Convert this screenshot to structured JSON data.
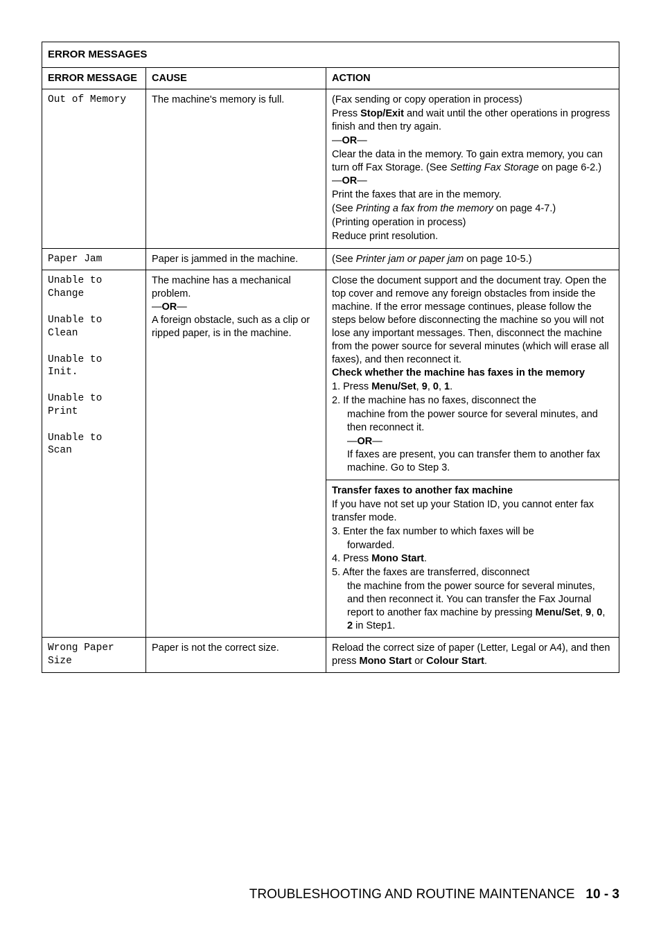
{
  "table": {
    "title": "ERROR MESSAGES",
    "headers": {
      "message": "ERROR MESSAGE",
      "cause": "CAUSE",
      "action": "ACTION"
    },
    "rows": {
      "out_of_memory": {
        "message": "Out of Memory",
        "cause": "The machine's memory is full.",
        "action": {
          "l1": "(Fax sending or copy operation in process)",
          "l2a": "Press ",
          "l2b": "Stop/Exit",
          "l2c": " and wait until the other operations in progress finish and then try again.",
          "or1a": "—",
          "or1b": "OR",
          "or1c": "—",
          "l3a": "Clear the data in the memory. To gain extra memory, you can turn off Fax Storage. (See ",
          "l3b": "Setting Fax Storage",
          "l3c": " on page 6-2.)",
          "or2a": "—",
          "or2b": "OR",
          "or2c": "—",
          "l4": "Print the faxes that are in the memory.",
          "l5a": "(See ",
          "l5b": "Printing a fax from the memory",
          "l5c": " on page 4-7.)",
          "l6": "(Printing operation in process)",
          "l7": "Reduce print resolution."
        }
      },
      "paper_jam": {
        "message": "Paper Jam",
        "cause": "Paper is jammed in the machine.",
        "action_a": "(See ",
        "action_b": "Printer jam or paper jam",
        "action_c": " on page 10-5.)"
      },
      "unable": {
        "message": "Unable to\nChange\n\nUnable to\nClean\n\nUnable to\nInit.\n\nUnable to\nPrint\n\nUnable to\nScan",
        "cause": {
          "l1": "The machine has a mechanical problem.",
          "or_a": "—",
          "or_b": "OR",
          "or_c": "—",
          "l2": "A foreign obstacle, such as a clip or ripped paper, is in the machine."
        },
        "action1": {
          "para1": "Close the document support and the document tray. Open the top cover and remove any foreign obstacles from inside the machine. If the error message continues, please follow the steps below before disconnecting the machine so you will not lose any important messages. Then, disconnect the machine from the power source for several minutes (which will erase all faxes), and then reconnect it.",
          "check": "Check whether the machine has faxes in the memory",
          "s1a": "1. Press ",
          "s1b": "Menu/Set",
          "s1c": ", ",
          "s1d": "9",
          "s1e": ", ",
          "s1f": "0",
          "s1g": ", ",
          "s1h": "1",
          "s1i": ".",
          "s2": "2. If the machine has no faxes, disconnect the machine from the power source for several minutes, and then reconnect it.",
          "or_a": "—",
          "or_b": "OR",
          "or_c": "—",
          "s2b": "If faxes are present, you can transfer them to another fax machine. Go to Step 3."
        },
        "action2": {
          "head": "Transfer faxes to another fax machine",
          "l1": "If you have not set up your Station ID, you cannot enter fax transfer mode.",
          "s3": "3. Enter the fax number to which faxes will be forwarded.",
          "s4a": "4. Press ",
          "s4b": "Mono Start",
          "s4c": ".",
          "s5a": "5. After the faxes are transferred, disconnect the machine from the power source for several minutes, and then reconnect it. You can transfer the Fax Journal report to another fax machine by pressing ",
          "s5b": "Menu/Set",
          "s5c": ", ",
          "s5d": "9",
          "s5e": ", ",
          "s5f": "0",
          "s5g": ", ",
          "s5h": "2",
          "s5i": " in Step1."
        }
      },
      "wrong_paper": {
        "message": "Wrong Paper\nSize",
        "cause": "Paper is not the correct size.",
        "action_a": "Reload the correct size of paper (Letter, Legal or A4), and then press ",
        "action_b": "Mono Start",
        "action_c": " or ",
        "action_d": "Colour Start",
        "action_e": "."
      }
    }
  },
  "footer": {
    "text": "TROUBLESHOOTING AND ROUTINE MAINTENANCE",
    "page": "10 - 3"
  }
}
